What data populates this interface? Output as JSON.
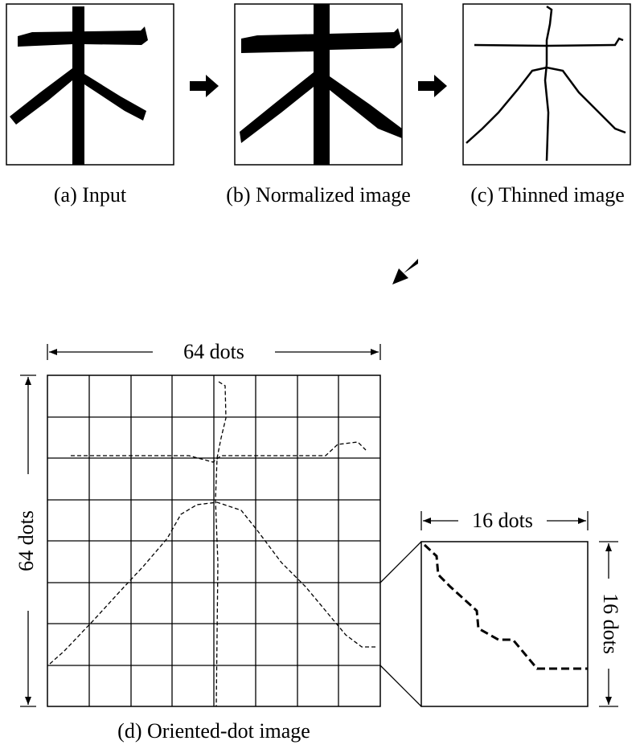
{
  "panels": [
    {
      "caption": "(a) Input"
    },
    {
      "caption": "(b) Normalized image"
    },
    {
      "caption": "(c) Thinned image"
    },
    {
      "caption": "(d) Oriented-dot image"
    }
  ],
  "dimensions": {
    "grid_width": "64 dots",
    "grid_height": "64 dots",
    "zoom_width": "16 dots",
    "zoom_height": "16 dots"
  }
}
